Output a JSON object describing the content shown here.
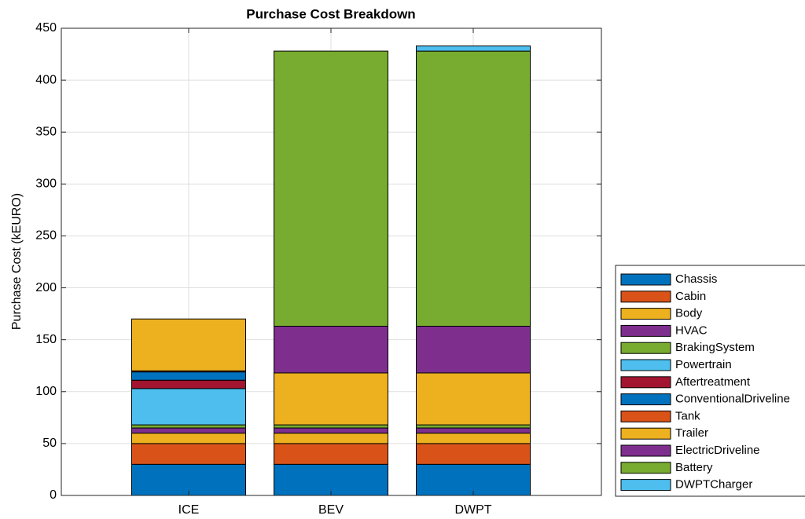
{
  "chart_data": {
    "type": "stacked-bar",
    "title": "Purchase Cost Breakdown",
    "y_label": "Purchase Cost (kEURO)",
    "categories": [
      "ICE",
      "BEV",
      "DWPT"
    ],
    "ylim": [
      0,
      450
    ],
    "yticks": [
      0,
      50,
      100,
      150,
      200,
      250,
      300,
      350,
      400,
      450
    ],
    "grid": true,
    "series": [
      {
        "name": "Chassis",
        "color": "#0072BD",
        "values": [
          30,
          30,
          30
        ]
      },
      {
        "name": "Cabin",
        "color": "#D95319",
        "values": [
          20,
          20,
          20
        ]
      },
      {
        "name": "Body",
        "color": "#EDB120",
        "values": [
          10,
          10,
          10
        ]
      },
      {
        "name": "HVAC",
        "color": "#7E2F8E",
        "values": [
          5,
          5,
          5
        ]
      },
      {
        "name": "BrakingSystem",
        "color": "#77AC30",
        "values": [
          3,
          3,
          3
        ]
      },
      {
        "name": "Powertrain",
        "color": "#4DBEEE",
        "values": [
          35,
          0,
          0
        ]
      },
      {
        "name": "Aftertreatment",
        "color": "#A2142F",
        "values": [
          8,
          0,
          0
        ]
      },
      {
        "name": "ConventionalDriveline",
        "color": "#0072BD",
        "values": [
          8,
          0,
          0
        ]
      },
      {
        "name": "Tank",
        "color": "#D95319",
        "values": [
          1,
          0,
          0
        ]
      },
      {
        "name": "Trailer",
        "color": "#EDB120",
        "values": [
          50,
          50,
          50
        ]
      },
      {
        "name": "ElectricDriveline",
        "color": "#7E2F8E",
        "values": [
          0,
          45,
          45
        ]
      },
      {
        "name": "Battery",
        "color": "#77AC30",
        "values": [
          0,
          265,
          265
        ]
      },
      {
        "name": "DWPTCharger",
        "color": "#4DBEEE",
        "values": [
          0,
          0,
          5
        ]
      }
    ]
  }
}
